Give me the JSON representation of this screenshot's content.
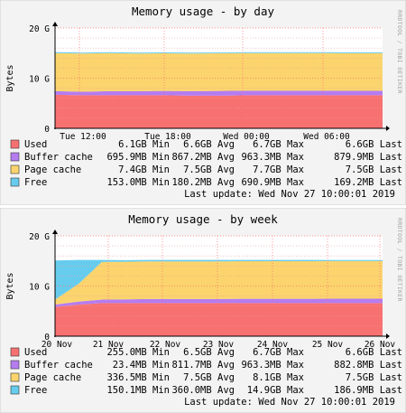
{
  "colors": {
    "canvas": "#f3f3f3",
    "plot_bg": "#ffffff",
    "frame": "#000000",
    "major_grid": "#ff7070",
    "minor_grid": "#e8a0a0",
    "watermark": "#a0a0a0"
  },
  "watermark": "RRDTOOL / TOBI OETIKER",
  "chart_data": [
    {
      "type": "area",
      "stacked": true,
      "title": "Memory usage - by day",
      "ylabel": "Bytes",
      "ylim": [
        0,
        20
      ],
      "y_ticks": [
        {
          "v": 0,
          "label": "0"
        },
        {
          "v": 10,
          "label": "10 G"
        },
        {
          "v": 20,
          "label": "20 G"
        }
      ],
      "x_ticks": [
        "Tue 12:00",
        "Tue 18:00",
        "Wed 00:00",
        "Wed 06:00"
      ],
      "grid": true,
      "series": [
        {
          "name": "Used",
          "color": "#f87171",
          "values": [
            6.7,
            6.6,
            6.6,
            6.6,
            6.6,
            6.5,
            6.5,
            6.6,
            6.6,
            6.6,
            6.6,
            6.6,
            6.6
          ]
        },
        {
          "name": "Buffer cache",
          "color": "#b57cf0",
          "values": [
            0.7,
            0.7,
            0.8,
            0.8,
            0.85,
            0.9,
            0.95,
            0.9,
            0.9,
            0.9,
            0.9,
            0.88,
            0.88
          ]
        },
        {
          "name": "Page cache",
          "color": "#fbd46d",
          "values": [
            7.6,
            7.6,
            7.6,
            7.5,
            7.5,
            7.5,
            7.5,
            7.5,
            7.5,
            7.5,
            7.5,
            7.5,
            7.5
          ]
        },
        {
          "name": "Free",
          "color": "#66ccee",
          "values": [
            0.2,
            0.2,
            0.18,
            0.18,
            0.18,
            0.18,
            0.17,
            0.17,
            0.17,
            0.17,
            0.17,
            0.17,
            0.17
          ]
        }
      ],
      "legend": [
        {
          "name": "Used",
          "color": "#f87171",
          "min": "6.1GB Min",
          "avg": "6.6GB Avg",
          "max": "6.7GB Max",
          "last": "6.6GB Last"
        },
        {
          "name": "Buffer cache",
          "color": "#b57cf0",
          "min": "695.9MB Min",
          "avg": "867.2MB Avg",
          "max": "963.3MB Max",
          "last": "879.9MB Last"
        },
        {
          "name": "Page cache",
          "color": "#fbd46d",
          "min": "7.4GB Min",
          "avg": "7.5GB Avg",
          "max": "7.7GB Max",
          "last": "7.5GB Last"
        },
        {
          "name": "Free",
          "color": "#66ccee",
          "min": "153.0MB Min",
          "avg": "180.2MB Avg",
          "max": "690.9MB Max",
          "last": "169.2MB Last"
        }
      ],
      "last_update": "Last update: Wed Nov 27 10:00:01 2019"
    },
    {
      "type": "area",
      "stacked": true,
      "title": "Memory usage - by week",
      "ylabel": "Bytes",
      "ylim": [
        0,
        20
      ],
      "y_ticks": [
        {
          "v": 0,
          "label": "0"
        },
        {
          "v": 10,
          "label": "10 G"
        },
        {
          "v": 20,
          "label": "20 G"
        }
      ],
      "x_ticks": [
        "20 Nov",
        "21 Nov",
        "22 Nov",
        "23 Nov",
        "24 Nov",
        "25 Nov",
        "26 Nov"
      ],
      "grid": true,
      "series": [
        {
          "name": "Used",
          "color": "#f87171",
          "values": [
            5.8,
            6.3,
            6.6,
            6.6,
            6.6,
            6.6,
            6.6,
            6.6,
            6.6,
            6.6,
            6.6,
            6.6,
            6.6,
            6.6,
            6.6
          ]
        },
        {
          "name": "Buffer cache",
          "color": "#b57cf0",
          "values": [
            0.5,
            0.6,
            0.7,
            0.75,
            0.8,
            0.8,
            0.8,
            0.8,
            0.85,
            0.85,
            0.85,
            0.85,
            0.88,
            0.88,
            0.88
          ]
        },
        {
          "name": "Page cache",
          "color": "#fbd46d",
          "values": [
            1.0,
            3.5,
            7.5,
            7.5,
            7.5,
            7.5,
            7.5,
            7.5,
            7.5,
            7.5,
            7.5,
            7.5,
            7.5,
            7.5,
            7.5
          ]
        },
        {
          "name": "Free",
          "color": "#66ccee",
          "values": [
            7.8,
            4.8,
            0.4,
            0.3,
            0.3,
            0.3,
            0.3,
            0.3,
            0.25,
            0.25,
            0.25,
            0.25,
            0.2,
            0.2,
            0.2
          ]
        }
      ],
      "legend": [
        {
          "name": "Used",
          "color": "#f87171",
          "min": "255.0MB Min",
          "avg": "6.5GB Avg",
          "max": "6.7GB Max",
          "last": "6.6GB Last"
        },
        {
          "name": "Buffer cache",
          "color": "#b57cf0",
          "min": "23.4MB Min",
          "avg": "811.7MB Avg",
          "max": "963.3MB Max",
          "last": "882.8MB Last"
        },
        {
          "name": "Page cache",
          "color": "#fbd46d",
          "min": "336.5MB Min",
          "avg": "7.5GB Avg",
          "max": "8.1GB Max",
          "last": "7.5GB Last"
        },
        {
          "name": "Free",
          "color": "#66ccee",
          "min": "150.1MB Min",
          "avg": "360.0MB Avg",
          "max": "14.9GB Max",
          "last": "186.9MB Last"
        }
      ],
      "last_update": "Last update: Wed Nov 27 10:00:01 2019"
    }
  ]
}
